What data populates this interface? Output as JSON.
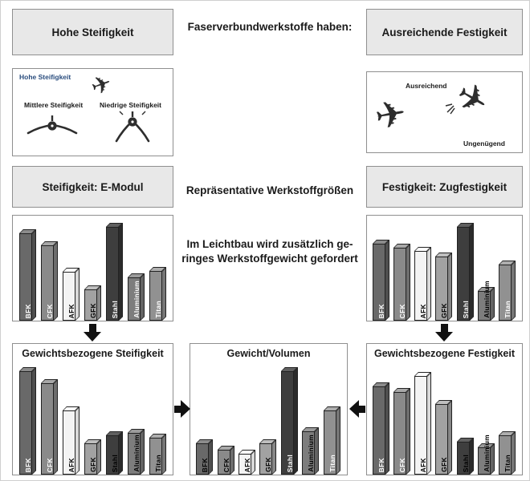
{
  "colors": {
    "canvas_bg": "#ffffff",
    "gray_box_bg": "#e8e8e8",
    "box_border": "#8f8f8f",
    "text": "#1a1a1a",
    "arrow": "#111111",
    "stiffness_small_label": "#2a4d7e"
  },
  "icons": {
    "plane_glyph": "✈"
  },
  "header": {
    "left_box": "Hohe Steifigkeit",
    "center_text": "Faserverbundwerkstoffe haben:",
    "right_box": "Ausreichende Festigkeit"
  },
  "stiffness_illustration": {
    "label_high": "Hohe Steifigkeit",
    "label_medium": "Mittlere Steifigkeit",
    "label_low": "Niedrige Steifigkeit"
  },
  "strength_illustration": {
    "label_sufficient": "Ausreichend",
    "label_insufficient": "Ungenügend"
  },
  "measures_row": {
    "left_box": "Steifigkeit: E-Modul",
    "center_text": "Repräsentative Werkstoffgrößen",
    "right_box": "Festigkeit: Zugfestigkeit"
  },
  "lightweight_note": {
    "line1": "Im Leichtbau wird zusätzlich ge-",
    "line2": "ringes Werkstoffgewicht gefordert"
  },
  "materials": {
    "BFK": {
      "fill": "#696969",
      "top": "#8c8c8c",
      "side": "#4f4f4f",
      "label_on_bar": "#ffffff"
    },
    "CFK": {
      "fill": "#8a8a8a",
      "top": "#a8a8a8",
      "side": "#6e6e6e",
      "label_on_bar": "#ffffff"
    },
    "AFK": {
      "fill": "#f4f4f4",
      "top": "#ffffff",
      "side": "#d9d9d9",
      "label_on_bar": "#000000"
    },
    "GFK": {
      "fill": "#a2a2a2",
      "top": "#bfbfbf",
      "side": "#878787",
      "label_on_bar": "#000000"
    },
    "Stahl": {
      "fill": "#3e3e3e",
      "top": "#606060",
      "side": "#2b2b2b",
      "label_on_bar": "#ffffff"
    },
    "Aluminium": {
      "fill": "#7d7d7d",
      "top": "#9b9b9b",
      "side": "#646464",
      "label_on_bar": "#ffffff"
    },
    "Titan": {
      "fill": "#919191",
      "top": "#aeaeae",
      "side": "#767676",
      "label_on_bar": "#ffffff"
    }
  },
  "chart_data": [
    {
      "id": "e_modul",
      "type": "bar",
      "title": "Steifigkeit: E-Modul",
      "categories": [
        "BFK",
        "CFK",
        "AFK",
        "GFK",
        "Stahl",
        "Aluminium",
        "Titan"
      ],
      "values": [
        0.93,
        0.8,
        0.52,
        0.33,
        1.0,
        0.46,
        0.53
      ],
      "ylim": [
        0,
        1
      ],
      "axes": "unlabeled, relative comparison",
      "grid": false,
      "legend": "none"
    },
    {
      "id": "zugfestigkeit",
      "type": "bar",
      "title": "Festigkeit: Zugfestigkeit",
      "categories": [
        "BFK",
        "CFK",
        "AFK",
        "GFK",
        "Stahl",
        "Aluminium",
        "Titan"
      ],
      "values": [
        0.82,
        0.78,
        0.74,
        0.68,
        1.0,
        0.32,
        0.6
      ],
      "ylim": [
        0,
        1
      ],
      "axes": "unlabeled, relative comparison",
      "grid": false,
      "legend": "none"
    },
    {
      "id": "gewichtsbezogene_steifigkeit",
      "type": "bar",
      "title": "Gewichtsbezogene Steifigkeit",
      "categories": [
        "BFK",
        "CFK",
        "AFK",
        "GFK",
        "Stahl",
        "Aluminium",
        "Titan"
      ],
      "values": [
        1.0,
        0.88,
        0.62,
        0.3,
        0.38,
        0.4,
        0.36
      ],
      "ylim": [
        0,
        1
      ],
      "axes": "unlabeled, relative comparison",
      "grid": false,
      "legend": "none"
    },
    {
      "id": "gewicht_volumen",
      "type": "bar",
      "title": "Gewicht/Volumen",
      "categories": [
        "BFK",
        "CFK",
        "AFK",
        "GFK",
        "Stahl",
        "Aluminium",
        "Titan"
      ],
      "values": [
        0.3,
        0.24,
        0.2,
        0.3,
        1.0,
        0.42,
        0.62
      ],
      "ylim": [
        0,
        1
      ],
      "axes": "unlabeled, relative comparison",
      "grid": false,
      "legend": "none"
    },
    {
      "id": "gewichtsbezogene_festigkeit",
      "type": "bar",
      "title": "Gewichtsbezogene Festigkeit",
      "categories": [
        "BFK",
        "CFK",
        "AFK",
        "GFK",
        "Stahl",
        "Aluminium",
        "Titan"
      ],
      "values": [
        0.85,
        0.8,
        0.95,
        0.68,
        0.32,
        0.26,
        0.38
      ],
      "ylim": [
        0,
        1
      ],
      "axes": "unlabeled, relative comparison",
      "grid": false,
      "legend": "none"
    }
  ]
}
